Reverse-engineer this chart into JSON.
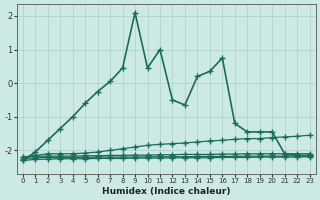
{
  "xlabel": "Humidex (Indice chaleur)",
  "ylabel": "",
  "xlim": [
    -0.5,
    23.5
  ],
  "ylim": [
    -2.7,
    2.35
  ],
  "bg_color": "#cde9e4",
  "grid_color": "#b0d5cc",
  "line_color": "#1a6b5a",
  "series": [
    {
      "x": [
        0,
        1,
        2,
        3,
        4,
        5,
        6,
        7,
        8,
        9,
        10,
        11,
        12,
        13,
        14,
        15,
        16,
        17,
        18,
        19,
        20,
        21,
        22,
        23
      ],
      "y": [
        -2.3,
        -2.05,
        -1.7,
        -1.35,
        -1.0,
        -0.6,
        -0.25,
        0.05,
        0.45,
        2.1,
        0.45,
        1.0,
        -0.5,
        -0.65,
        0.2,
        0.35,
        0.75,
        -1.2,
        -1.45,
        -1.45,
        -1.45,
        -2.1,
        -2.15,
        -2.15
      ],
      "marker": "+",
      "markersize": 5,
      "linewidth": 1.2
    },
    {
      "x": [
        0,
        1,
        2,
        3,
        4,
        5,
        6,
        7,
        8,
        9,
        10,
        11,
        12,
        13,
        14,
        15,
        16,
        17,
        18,
        19,
        20,
        21,
        22,
        23
      ],
      "y": [
        -2.2,
        -2.15,
        -2.1,
        -2.1,
        -2.1,
        -2.08,
        -2.05,
        -2.0,
        -1.95,
        -1.9,
        -1.85,
        -1.82,
        -1.8,
        -1.78,
        -1.75,
        -1.72,
        -1.7,
        -1.67,
        -1.65,
        -1.65,
        -1.62,
        -1.6,
        -1.58,
        -1.55
      ],
      "marker": "+",
      "markersize": 4,
      "linewidth": 0.9
    },
    {
      "x": [
        0,
        1,
        2,
        3,
        4,
        5,
        6,
        7,
        8,
        9,
        10,
        11,
        12,
        13,
        14,
        15,
        16,
        17,
        18,
        19,
        20,
        21,
        22,
        23
      ],
      "y": [
        -2.2,
        -2.18,
        -2.17,
        -2.17,
        -2.17,
        -2.16,
        -2.16,
        -2.15,
        -2.15,
        -2.14,
        -2.14,
        -2.13,
        -2.13,
        -2.12,
        -2.12,
        -2.12,
        -2.11,
        -2.11,
        -2.1,
        -2.1,
        -2.1,
        -2.1,
        -2.1,
        -2.1
      ],
      "marker": "+",
      "markersize": 4,
      "linewidth": 0.9
    },
    {
      "x": [
        0,
        1,
        2,
        3,
        4,
        5,
        6,
        7,
        8,
        9,
        10,
        11,
        12,
        13,
        14,
        15,
        16,
        17,
        18,
        19,
        20,
        21,
        22,
        23
      ],
      "y": [
        -2.25,
        -2.22,
        -2.21,
        -2.21,
        -2.21,
        -2.21,
        -2.2,
        -2.2,
        -2.2,
        -2.2,
        -2.19,
        -2.19,
        -2.19,
        -2.19,
        -2.18,
        -2.18,
        -2.18,
        -2.18,
        -2.17,
        -2.17,
        -2.17,
        -2.17,
        -2.16,
        -2.16
      ],
      "marker": "+",
      "markersize": 4,
      "linewidth": 0.9
    },
    {
      "x": [
        0,
        1,
        2,
        3,
        4,
        5,
        6,
        7,
        8,
        9,
        10,
        11,
        12,
        13,
        14,
        15,
        16,
        17,
        18,
        19,
        20,
        21,
        22,
        23
      ],
      "y": [
        -2.3,
        -2.27,
        -2.26,
        -2.25,
        -2.25,
        -2.25,
        -2.24,
        -2.24,
        -2.24,
        -2.23,
        -2.23,
        -2.23,
        -2.22,
        -2.22,
        -2.22,
        -2.22,
        -2.21,
        -2.21,
        -2.21,
        -2.2,
        -2.2,
        -2.2,
        -2.2,
        -2.19
      ],
      "marker": "+",
      "markersize": 4,
      "linewidth": 0.9
    }
  ],
  "yticks": [
    -2,
    -1,
    0,
    1,
    2
  ],
  "xticks": [
    0,
    1,
    2,
    3,
    4,
    5,
    6,
    7,
    8,
    9,
    10,
    11,
    12,
    13,
    14,
    15,
    16,
    17,
    18,
    19,
    20,
    21,
    22,
    23
  ]
}
